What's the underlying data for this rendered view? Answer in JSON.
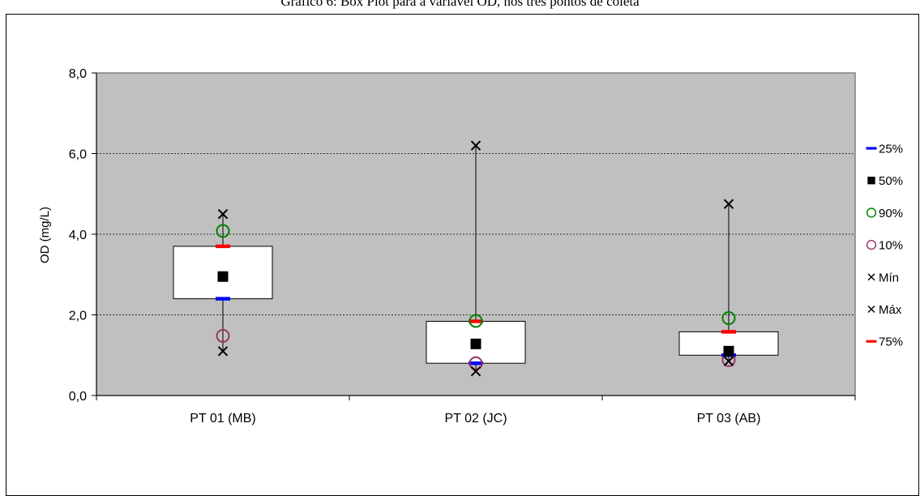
{
  "chart_data": {
    "type": "boxplot",
    "title": "Gráfico 6: Box Plot para a variável OD, nos três pontos de coleta",
    "ylabel": "OD  (mg/L)",
    "xlabel": "",
    "ylim": [
      0,
      8
    ],
    "yticks": [
      "0,0",
      "2,0",
      "4,0",
      "6,0",
      "8,0"
    ],
    "ytick_values": [
      0,
      2,
      4,
      6,
      8
    ],
    "grid": true,
    "legend_position": "right",
    "plot_background": "#c0c0c0",
    "categories": [
      "PT 01 (MB)",
      "PT 02 (JC)",
      "PT 03 (AB)"
    ],
    "series": [
      {
        "name": "25%",
        "marker": "blue-dash",
        "color": "#0000ff",
        "values": [
          2.4,
          0.8,
          1.0
        ]
      },
      {
        "name": "50%",
        "marker": "black-square",
        "color": "#000000",
        "values": [
          2.95,
          1.28,
          1.1
        ]
      },
      {
        "name": "90%",
        "marker": "green-circle",
        "color": "#008000",
        "values": [
          4.08,
          1.85,
          1.92
        ]
      },
      {
        "name": "10%",
        "marker": "purple-circle",
        "color": "#993366",
        "values": [
          1.48,
          0.8,
          0.88
        ]
      },
      {
        "name": "Mín",
        "marker": "x",
        "color": "#000000",
        "values": [
          1.1,
          0.6,
          0.85
        ]
      },
      {
        "name": "Máx",
        "marker": "x",
        "color": "#000000",
        "values": [
          4.5,
          6.2,
          4.75
        ]
      },
      {
        "name": "75%",
        "marker": "red-dash",
        "color": "#ff0000",
        "values": [
          3.7,
          1.84,
          1.58
        ]
      }
    ]
  }
}
